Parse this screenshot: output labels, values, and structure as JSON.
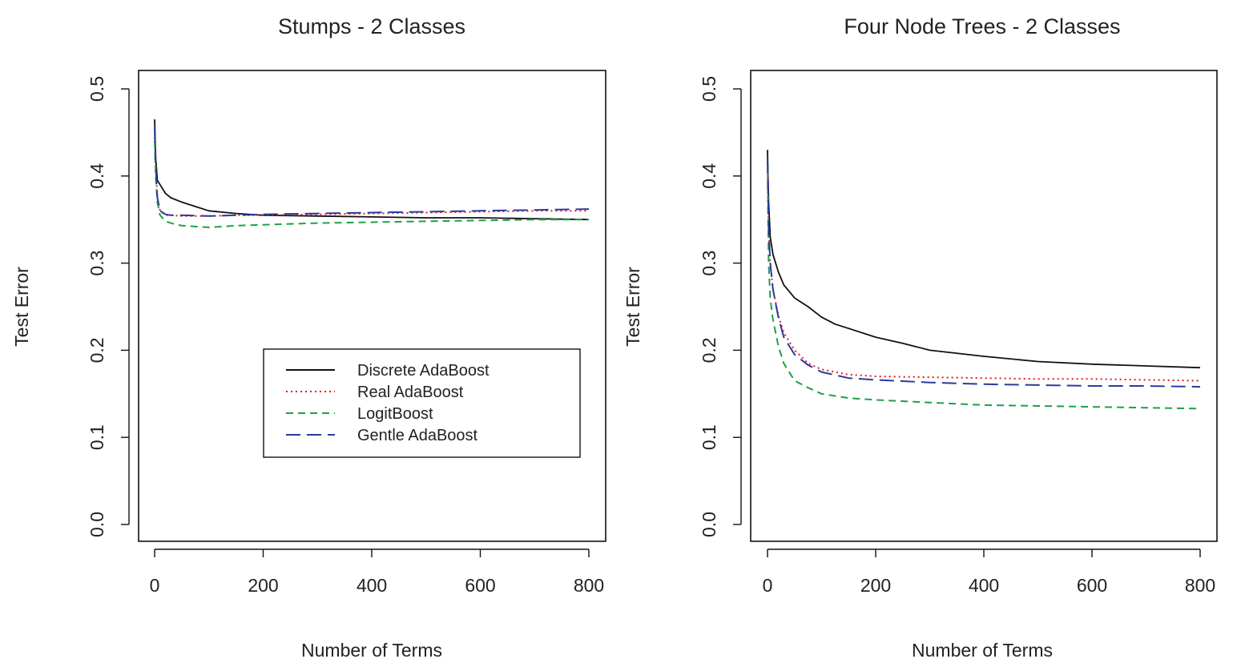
{
  "chart_data": [
    {
      "type": "line",
      "title": "Stumps - 2 Classes",
      "xlabel": "Number of Terms",
      "ylabel": "Test Error",
      "xlim": [
        0,
        800
      ],
      "ylim": [
        0.0,
        0.5
      ],
      "xticks": [
        "0",
        "200",
        "400",
        "600",
        "800"
      ],
      "yticks": [
        "0.0",
        "0.1",
        "0.2",
        "0.3",
        "0.4",
        "0.5"
      ],
      "grid": false,
      "legend": "inside-lower-right",
      "series": [
        {
          "name": "Discrete AdaBoost",
          "color": "#111111",
          "dash": "solid",
          "x": [
            0,
            2,
            5,
            10,
            20,
            30,
            50,
            75,
            100,
            150,
            200,
            300,
            400,
            500,
            600,
            700,
            800
          ],
          "y": [
            0.465,
            0.42,
            0.395,
            0.39,
            0.38,
            0.375,
            0.37,
            0.365,
            0.36,
            0.357,
            0.355,
            0.354,
            0.353,
            0.352,
            0.352,
            0.351,
            0.35
          ]
        },
        {
          "name": "Real AdaBoost",
          "color": "#e41a1c",
          "dash": "dotted",
          "x": [
            0,
            2,
            5,
            10,
            20,
            30,
            50,
            100,
            150,
            200,
            300,
            400,
            500,
            600,
            700,
            800
          ],
          "y": [
            0.45,
            0.41,
            0.375,
            0.36,
            0.355,
            0.355,
            0.354,
            0.354,
            0.355,
            0.355,
            0.356,
            0.357,
            0.358,
            0.359,
            0.36,
            0.36
          ]
        },
        {
          "name": "LogitBoost",
          "color": "#1fa04a",
          "dash": "dashed",
          "x": [
            0,
            2,
            5,
            10,
            20,
            30,
            50,
            75,
            100,
            150,
            200,
            300,
            400,
            500,
            600,
            700,
            800
          ],
          "y": [
            0.44,
            0.4,
            0.37,
            0.355,
            0.348,
            0.346,
            0.343,
            0.342,
            0.341,
            0.343,
            0.344,
            0.346,
            0.347,
            0.348,
            0.349,
            0.35,
            0.35
          ]
        },
        {
          "name": "Gentle AdaBoost",
          "color": "#2b3a9e",
          "dash": "longdash",
          "x": [
            0,
            2,
            5,
            10,
            20,
            30,
            50,
            100,
            150,
            200,
            300,
            400,
            500,
            600,
            700,
            800
          ],
          "y": [
            0.455,
            0.41,
            0.375,
            0.36,
            0.356,
            0.355,
            0.355,
            0.354,
            0.355,
            0.356,
            0.357,
            0.358,
            0.359,
            0.36,
            0.361,
            0.362
          ]
        }
      ]
    },
    {
      "type": "line",
      "title": "Four Node Trees - 2 Classes",
      "xlabel": "Number of Terms",
      "ylabel": "Test Error",
      "xlim": [
        0,
        800
      ],
      "ylim": [
        0.0,
        0.5
      ],
      "xticks": [
        "0",
        "200",
        "400",
        "600",
        "800"
      ],
      "yticks": [
        "0.0",
        "0.1",
        "0.2",
        "0.3",
        "0.4",
        "0.5"
      ],
      "grid": false,
      "series": [
        {
          "name": "Discrete AdaBoost",
          "color": "#111111",
          "dash": "solid",
          "x": [
            0,
            2,
            5,
            10,
            20,
            30,
            50,
            75,
            100,
            125,
            150,
            200,
            250,
            300,
            400,
            500,
            600,
            700,
            800
          ],
          "y": [
            0.43,
            0.37,
            0.33,
            0.31,
            0.29,
            0.275,
            0.26,
            0.25,
            0.238,
            0.23,
            0.225,
            0.215,
            0.208,
            0.2,
            0.193,
            0.187,
            0.184,
            0.182,
            0.18
          ]
        },
        {
          "name": "Real AdaBoost",
          "color": "#e41a1c",
          "dash": "dotted",
          "x": [
            0,
            2,
            5,
            10,
            20,
            30,
            50,
            75,
            100,
            150,
            200,
            300,
            400,
            500,
            600,
            700,
            800
          ],
          "y": [
            0.42,
            0.34,
            0.3,
            0.27,
            0.24,
            0.22,
            0.2,
            0.185,
            0.178,
            0.172,
            0.17,
            0.169,
            0.168,
            0.167,
            0.167,
            0.166,
            0.165
          ]
        },
        {
          "name": "LogitBoost",
          "color": "#1fa04a",
          "dash": "dashed",
          "x": [
            0,
            2,
            5,
            10,
            20,
            30,
            50,
            75,
            100,
            150,
            200,
            300,
            400,
            500,
            600,
            700,
            800
          ],
          "y": [
            0.42,
            0.3,
            0.26,
            0.235,
            0.205,
            0.185,
            0.165,
            0.157,
            0.15,
            0.145,
            0.143,
            0.14,
            0.137,
            0.136,
            0.135,
            0.134,
            0.133
          ]
        },
        {
          "name": "Gentle AdaBoost",
          "color": "#2b3a9e",
          "dash": "longdash",
          "x": [
            0,
            2,
            5,
            10,
            20,
            30,
            50,
            75,
            100,
            150,
            200,
            300,
            400,
            500,
            600,
            700,
            800
          ],
          "y": [
            0.42,
            0.34,
            0.3,
            0.27,
            0.238,
            0.215,
            0.195,
            0.183,
            0.175,
            0.168,
            0.166,
            0.163,
            0.161,
            0.16,
            0.159,
            0.159,
            0.158
          ]
        }
      ]
    }
  ]
}
